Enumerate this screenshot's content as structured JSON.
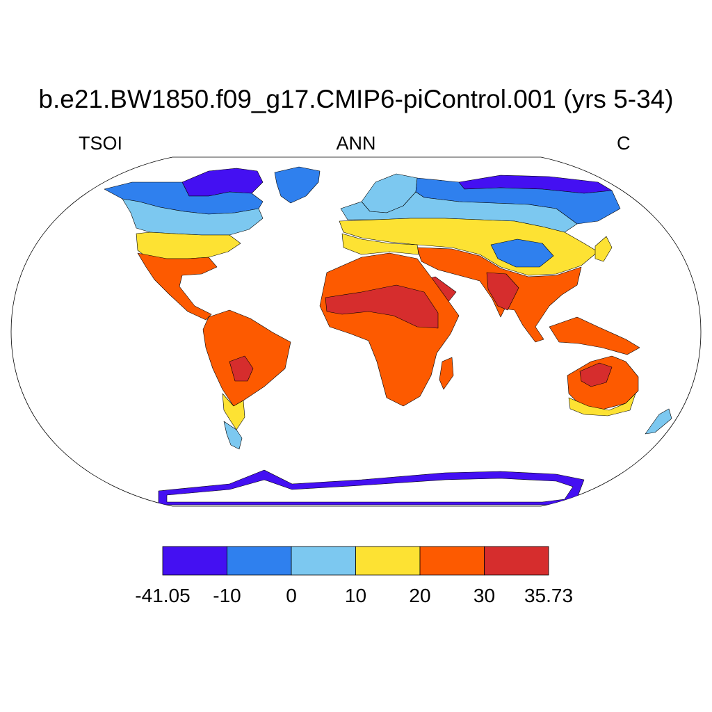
{
  "title": "b.e21.BW1850.f09_g17.CMIP6-piControl.001 (yrs 5-34)",
  "variable": "TSOI",
  "period": "ANN",
  "units": "C",
  "legend": {
    "colors": [
      "#4410f2",
      "#2f80ee",
      "#7cc8f0",
      "#fde233",
      "#fd5a00",
      "#d62d2d"
    ],
    "labels": [
      "-41.05",
      "-10",
      "0",
      "10",
      "20",
      "30",
      "35.73"
    ]
  },
  "map_colors": {
    "ocean": "#ffffff",
    "coast": "#000000"
  }
}
